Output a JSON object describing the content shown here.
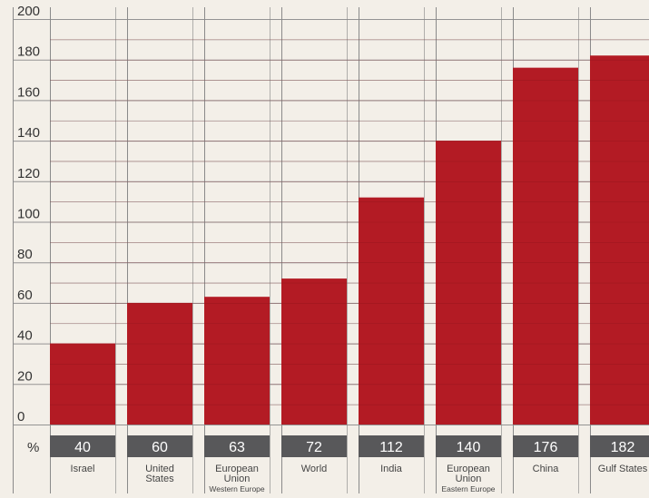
{
  "chart_data": {
    "type": "bar",
    "categories": [
      [
        "Israel"
      ],
      [
        "United",
        "States"
      ],
      [
        "European",
        "Union",
        "Western Europe"
      ],
      [
        "World"
      ],
      [
        "India"
      ],
      [
        "European",
        "Union",
        "Eastern Europe"
      ],
      [
        "China"
      ],
      [
        "Gulf States"
      ]
    ],
    "values": [
      40,
      60,
      63,
      72,
      112,
      140,
      176,
      182
    ],
    "value_labels": [
      "40",
      "60",
      "63",
      "72",
      "112",
      "140",
      "176",
      "182"
    ],
    "y_ticks": [
      "0",
      "20",
      "40",
      "60",
      "80",
      "100",
      "120",
      "140",
      "160",
      "180",
      "200"
    ],
    "ylim": [
      0,
      200
    ],
    "y_unit": "%",
    "grid": true,
    "colors": {
      "bar": "#b31b24",
      "value_box": "#58585a",
      "value_text": "#ffffff",
      "grid": "#8a8a8a",
      "background": "#f3efe8",
      "tick_text": "#333333",
      "category_text": "#444444"
    }
  }
}
